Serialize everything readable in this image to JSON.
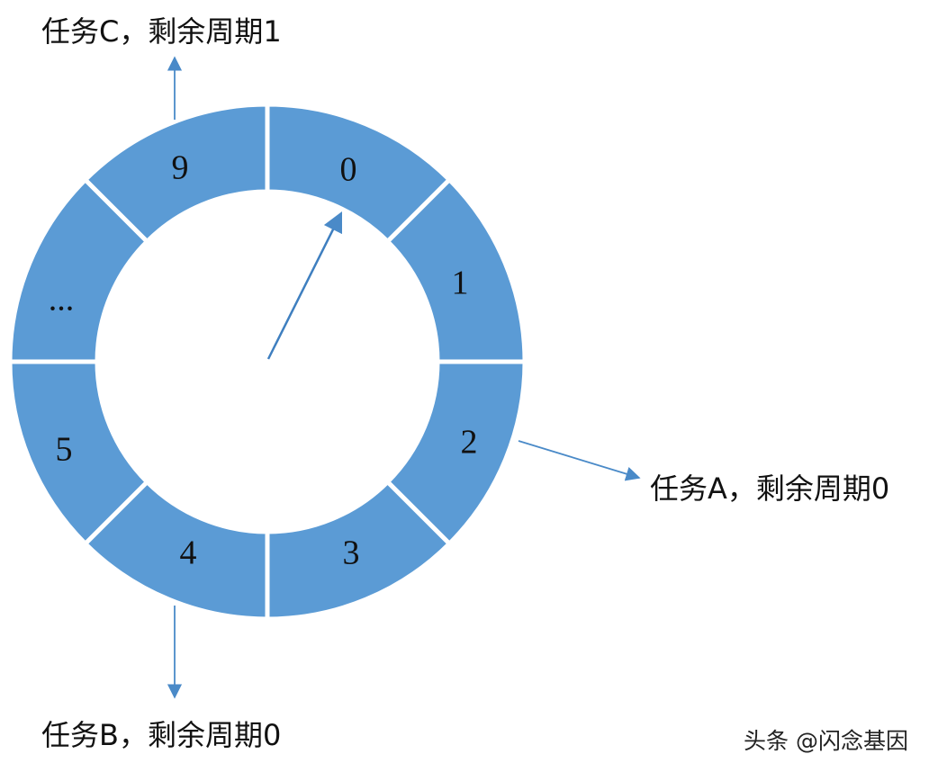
{
  "slots": [
    "0",
    "1",
    "2",
    "3",
    "4",
    "5",
    "...",
    "9"
  ],
  "pointer_slot": "0",
  "tasks": [
    {
      "slot": "9",
      "label": "任务C，剩余周期1"
    },
    {
      "slot": "2",
      "label": "任务A，剩余周期0"
    },
    {
      "slot": "4",
      "label": "任务B，剩余周期0"
    }
  ],
  "watermark": "头条 @闪念基因",
  "colors": {
    "segment_fill": "#5b9bd5",
    "separator": "#ffffff",
    "arrow": "#4a8ac8",
    "text": "#111111"
  }
}
